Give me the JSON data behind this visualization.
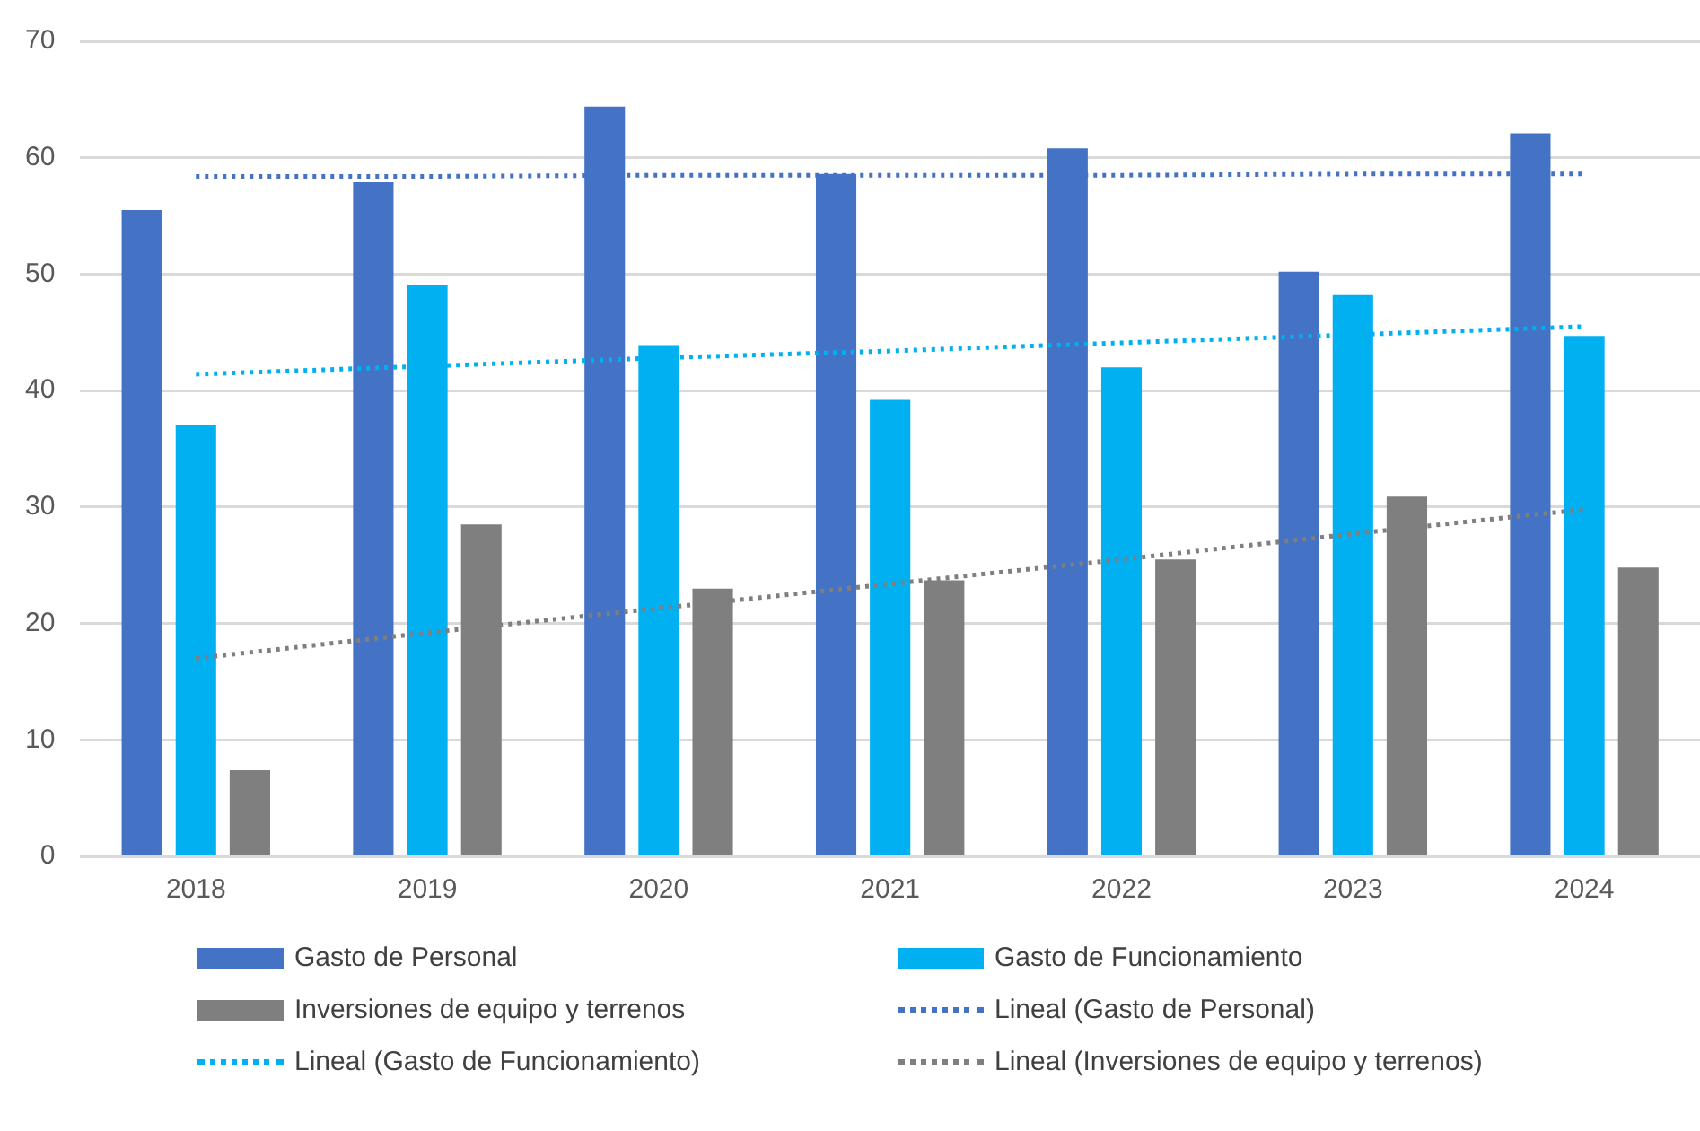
{
  "chart_data": {
    "type": "bar",
    "categories": [
      "2018",
      "2019",
      "2020",
      "2021",
      "2022",
      "2023",
      "2024"
    ],
    "series": [
      {
        "name": "Gasto de Personal",
        "color": "#4472c4",
        "values": [
          55.5,
          57.9,
          64.4,
          58.6,
          60.8,
          50.2,
          62.1
        ]
      },
      {
        "name": "Gasto de Funcionamiento",
        "color": "#00b0f0",
        "values": [
          37.0,
          49.1,
          43.9,
          39.2,
          42.0,
          48.2,
          44.7
        ]
      },
      {
        "name": "Inversiones de equipo y terrenos",
        "color": "#7f7f7f",
        "values": [
          7.4,
          28.5,
          23.0,
          23.7,
          25.5,
          30.9,
          24.8
        ]
      },
      {
        "name": "Lineal (Gasto de Personal)",
        "type": "line",
        "line_style": "dotted",
        "marker": "none",
        "color": "#4472c4",
        "values": [
          58.4,
          58.4,
          58.5,
          58.5,
          58.5,
          58.6,
          58.6
        ]
      },
      {
        "name": "Lineal (Gasto de Funcionamiento)",
        "type": "line",
        "line_style": "dotted",
        "marker": "none",
        "color": "#00b0f0",
        "values": [
          41.4,
          42.1,
          42.8,
          43.4,
          44.1,
          44.8,
          45.5
        ]
      },
      {
        "name": "Lineal (Inversiones de equipo y terrenos)",
        "type": "line",
        "line_style": "dotted",
        "marker": "none",
        "color": "#7f7f7f",
        "values": [
          17.0,
          19.2,
          21.3,
          23.4,
          25.5,
          27.7,
          29.8
        ]
      }
    ],
    "ylim": [
      0,
      70
    ],
    "yticks": [
      0,
      10,
      20,
      30,
      40,
      50,
      60,
      70
    ],
    "grid": "y",
    "legend": "bottom"
  }
}
